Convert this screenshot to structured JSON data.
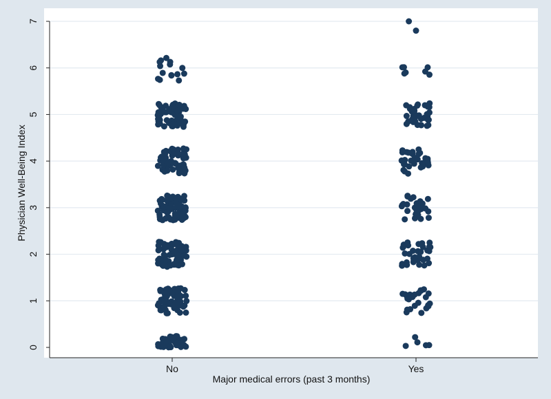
{
  "chart_data": {
    "type": "scatter",
    "title": "",
    "xlabel": "Major medical errors (past 3 months)",
    "ylabel": "Physician Well-Being Index",
    "categories": [
      "No",
      "Yes"
    ],
    "ylim": [
      0,
      7
    ],
    "yticks": [
      0,
      1,
      2,
      3,
      4,
      5,
      6,
      7
    ],
    "grid": true,
    "legend": "none",
    "series": [
      {
        "category": "No",
        "values_by_score": {
          "0": 45,
          "1": 70,
          "2": 80,
          "3": 75,
          "4": 65,
          "5": 55,
          "6": 15
        }
      },
      {
        "category": "Yes",
        "values_by_score": {
          "0": 5,
          "1": 25,
          "2": 35,
          "3": 30,
          "4": 30,
          "5": 35,
          "6": 7,
          "7": 1
        }
      }
    ],
    "outlier": {
      "category": "Yes",
      "y": 6.8
    },
    "colors": {
      "point": "#1a3a5c",
      "background": "#ffffff",
      "grid": "#e3eaf0",
      "frame": "#dfe7ee"
    }
  }
}
